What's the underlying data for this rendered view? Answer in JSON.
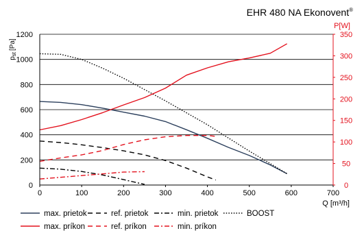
{
  "chart_data": {
    "type": "line",
    "title": "EHR 480 NA Ekonovent",
    "title_mark": "®",
    "xlabel": "Q [m³/h]",
    "ylabel_left": "pst [Pa]",
    "ylabel_left_main": "p",
    "ylabel_left_sub": "st",
    "ylabel_left_unit": "[Pa]",
    "ylabel_right": "P[W]",
    "xlim": [
      0,
      700
    ],
    "ylim_left": [
      0,
      1200
    ],
    "ylim_right": [
      0,
      350
    ],
    "x_ticks": [
      "0",
      "100",
      "200",
      "300",
      "400",
      "500",
      "600",
      "700"
    ],
    "y_left_ticks": [
      "0",
      "200",
      "400",
      "600",
      "800",
      "1000",
      "1200"
    ],
    "y_right_ticks": [
      "0",
      "50",
      "100",
      "150",
      "200",
      "250",
      "300",
      "350"
    ],
    "grid": "horizontal",
    "colors": {
      "pressure": "#2b3f5c",
      "power": "#e3101c",
      "axis_right": "#e3101c",
      "boost": "#000000",
      "grid": "#000000"
    },
    "series": [
      {
        "name": "max. prietok",
        "axis": "left",
        "color": "#2b3f5c",
        "dash": "solid",
        "x": [
          0,
          50,
          100,
          150,
          200,
          250,
          300,
          350,
          400,
          450,
          500,
          550,
          590
        ],
        "y": [
          665,
          658,
          640,
          612,
          580,
          548,
          505,
          440,
          372,
          300,
          235,
          160,
          90
        ]
      },
      {
        "name": "ref. prietok",
        "axis": "left",
        "color": "#000000",
        "dash": "dashed",
        "x": [
          0,
          50,
          100,
          150,
          200,
          250,
          300,
          350,
          400,
          420
        ],
        "y": [
          350,
          338,
          320,
          298,
          272,
          240,
          195,
          135,
          65,
          40
        ]
      },
      {
        "name": "min. prietok",
        "axis": "left",
        "color": "#000000",
        "dash": "dashdot",
        "x": [
          0,
          50,
          100,
          150,
          200,
          250
        ],
        "y": [
          135,
          126,
          108,
          80,
          43,
          5
        ]
      },
      {
        "name": "BOOST",
        "axis": "left",
        "color": "#000000",
        "dash": "dotted",
        "x": [
          0,
          50,
          100,
          150,
          200,
          250,
          300,
          350,
          400,
          450,
          500,
          550,
          590
        ],
        "y": [
          1045,
          1040,
          1000,
          930,
          850,
          760,
          670,
          575,
          480,
          375,
          270,
          170,
          90
        ]
      },
      {
        "name": "max. príkon",
        "axis": "right",
        "color": "#e3101c",
        "dash": "solid",
        "x": [
          0,
          50,
          100,
          150,
          200,
          250,
          300,
          350,
          400,
          450,
          500,
          550,
          590
        ],
        "y": [
          128,
          138,
          152,
          168,
          186,
          203,
          225,
          255,
          272,
          286,
          295,
          306,
          328
        ]
      },
      {
        "name": "ref. príkon",
        "axis": "right",
        "color": "#e3101c",
        "dash": "dashed",
        "x": [
          0,
          50,
          100,
          150,
          200,
          250,
          300,
          350,
          400,
          420
        ],
        "y": [
          55,
          63,
          70,
          80,
          94,
          105,
          112,
          115,
          115,
          113
        ]
      },
      {
        "name": "min. príkon",
        "axis": "right",
        "color": "#e3101c",
        "dash": "dashdot",
        "x": [
          0,
          50,
          100,
          150,
          200,
          250
        ],
        "y": [
          14,
          18,
          22,
          26,
          30,
          31
        ]
      }
    ],
    "legend": {
      "placement": "bottom",
      "rows": [
        [
          "max. prietok",
          "ref. prietok",
          "min. prietok",
          "BOOST"
        ],
        [
          "max. príkon",
          "ref. príkon",
          "min. príkon"
        ]
      ]
    }
  }
}
